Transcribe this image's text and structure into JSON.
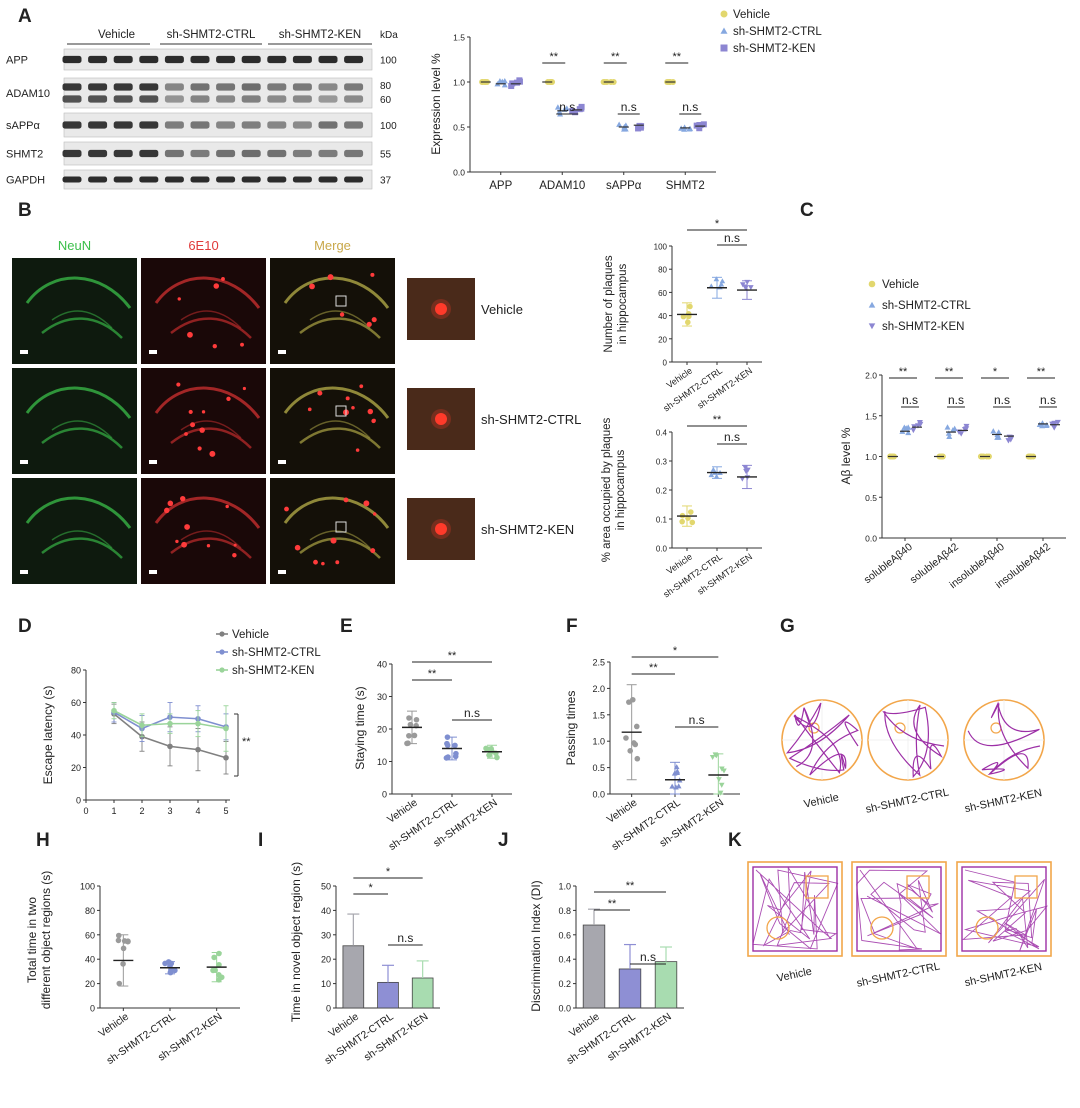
{
  "panel_letters": [
    "A",
    "B",
    "C",
    "D",
    "E",
    "F",
    "G",
    "H",
    "I",
    "J",
    "K"
  ],
  "colors": {
    "vehicle": "#e2d76e",
    "vehicle_gray": "#808080",
    "ctrl": "#7f8fd0",
    "ctrl_tri": "#86a8e0",
    "ken": "#8c86d2",
    "ken_green": "#9ad49a",
    "bar_vehicle": "#a7a7ae",
    "bar_ctrl": "#8e8fd4",
    "bar_ken": "#a8dcb0",
    "sig_dark": "#202020",
    "sig_red": "#d05050",
    "track": "#9c2fa6",
    "arena": "#f2a64a",
    "neun": "#3bbf4a",
    "e6e10": "#e03a3a",
    "merge": "#c9a84a"
  },
  "blot": {
    "groups": [
      "Vehicle",
      "sh-SHMT2-CTRL",
      "sh-SHMT2-KEN"
    ],
    "kda_label": "kDa",
    "rows": [
      {
        "name": "APP",
        "kda": [
          "100"
        ]
      },
      {
        "name": "ADAM10",
        "kda": [
          "80",
          "60"
        ]
      },
      {
        "name": "sAPPα",
        "kda": [
          "100"
        ]
      },
      {
        "name": "SHMT2",
        "kda": [
          "55"
        ]
      },
      {
        "name": "GAPDH",
        "kda": [
          "37"
        ]
      }
    ]
  },
  "ihc": {
    "headers": [
      "NeuN",
      "6E10",
      "Merge"
    ],
    "rows": [
      "Vehicle",
      "sh-SHMT2-CTRL",
      "sh-SHMT2-KEN"
    ]
  },
  "group_ticks": [
    "Vehicle",
    "sh-SHMT2-CTRL",
    "sh-SHMT2-KEN"
  ],
  "chart_data": [
    {
      "panel": "A",
      "type": "scatter",
      "ylabel": "Expression level %",
      "ylim": [
        0,
        1.5
      ],
      "yticks": [
        "0.0",
        "0.5",
        "1.0",
        "1.5"
      ],
      "categories": [
        "APP",
        "ADAM10",
        "sAPPα",
        "SHMT2"
      ],
      "legend": [
        "Vehicle",
        "sh-SHMT2-CTRL",
        "sh-SHMT2-KEN"
      ],
      "series": [
        {
          "name": "Vehicle",
          "values": [
            1.0,
            1.0,
            1.0,
            1.0
          ]
        },
        {
          "name": "sh-SHMT2-CTRL",
          "values": [
            0.98,
            0.68,
            0.5,
            0.49
          ]
        },
        {
          "name": "sh-SHMT2-KEN",
          "values": [
            0.98,
            0.69,
            0.52,
            0.51
          ]
        }
      ],
      "annotations": [
        {
          "pair": "Vehicle-CTRL",
          "category": "ADAM10",
          "label": "**"
        },
        {
          "pair": "CTRL-KEN",
          "category": "ADAM10",
          "label": "n.s"
        },
        {
          "pair": "Vehicle-CTRL",
          "category": "sAPPα",
          "label": "**"
        },
        {
          "pair": "CTRL-KEN",
          "category": "sAPPα",
          "label": "n.s"
        },
        {
          "pair": "Vehicle-CTRL",
          "category": "SHMT2",
          "label": "**"
        },
        {
          "pair": "CTRL-KEN",
          "category": "SHMT2",
          "label": "n.s"
        }
      ]
    },
    {
      "panel": "B-top",
      "type": "scatter",
      "ylabel": [
        "Number of plaques",
        "in hippocampus"
      ],
      "ylim": [
        0,
        100
      ],
      "yticks": [
        "0",
        "20",
        "40",
        "60",
        "80",
        "100"
      ],
      "categories": [
        "Vehicle",
        "sh-SHMT2-CTRL",
        "sh-SHMT2-KEN"
      ],
      "means": [
        41,
        64,
        62
      ],
      "sd": [
        10,
        9,
        8
      ],
      "annotations": [
        {
          "pair": "Vehicle-KEN",
          "label": "*"
        },
        {
          "pair": "CTRL-KEN",
          "label": "n.s"
        }
      ]
    },
    {
      "panel": "B-bottom",
      "type": "scatter",
      "ylabel": [
        "% area occupied by plaques",
        "in hippocampus"
      ],
      "ylim": [
        0,
        0.4
      ],
      "yticks": [
        "0.0",
        "0.1",
        "0.2",
        "0.3",
        "0.4"
      ],
      "categories": [
        "Vehicle",
        "sh-SHMT2-CTRL",
        "sh-SHMT2-KEN"
      ],
      "means": [
        0.11,
        0.26,
        0.245
      ],
      "sd": [
        0.035,
        0.02,
        0.04
      ],
      "annotations": [
        {
          "pair": "Vehicle-KEN",
          "label": "**"
        },
        {
          "pair": "CTRL-KEN",
          "label": "n.s"
        }
      ]
    },
    {
      "panel": "C",
      "type": "scatter",
      "ylabel": "Aβ level %",
      "ylim": [
        0,
        2.0
      ],
      "yticks": [
        "0.0",
        "0.5",
        "1.0",
        "1.5",
        "2.0"
      ],
      "categories": [
        "solubleAβ40",
        "solubleAβ42",
        "insolubleAβ40",
        "insolubleAβ42"
      ],
      "legend": [
        "Vehicle",
        "sh-SHMT2-CTRL",
        "sh-SHMT2-KEN"
      ],
      "series": [
        {
          "name": "Vehicle",
          "values": [
            1.0,
            1.0,
            1.0,
            1.0
          ]
        },
        {
          "name": "sh-SHMT2-CTRL",
          "values": [
            1.31,
            1.3,
            1.27,
            1.4
          ]
        },
        {
          "name": "sh-SHMT2-KEN",
          "values": [
            1.36,
            1.32,
            1.25,
            1.39
          ]
        }
      ],
      "annotations": [
        {
          "category": "solubleAβ40",
          "sig": "**",
          "ns": "n.s"
        },
        {
          "category": "solubleAβ42",
          "sig": "**",
          "ns": "n.s"
        },
        {
          "category": "insolubleAβ40",
          "sig": "*",
          "ns": "n.s"
        },
        {
          "category": "insolubleAβ42",
          "sig": "**",
          "ns": "n.s"
        }
      ]
    },
    {
      "panel": "D",
      "type": "line",
      "ylabel": "Escape latency (s)",
      "ylim": [
        0,
        80
      ],
      "xlim": [
        0,
        5
      ],
      "yticks": [
        "0",
        "20",
        "40",
        "60",
        "80"
      ],
      "xticks": [
        "0",
        "1",
        "2",
        "3",
        "4",
        "5"
      ],
      "x": [
        1,
        2,
        3,
        4,
        5
      ],
      "series": [
        {
          "name": "Vehicle",
          "values": [
            53,
            39,
            33,
            31,
            26
          ],
          "sd": [
            6,
            9,
            12,
            13,
            10
          ]
        },
        {
          "name": "sh-SHMT2-CTRL",
          "values": [
            54,
            44,
            51,
            50,
            45
          ],
          "sd": [
            6,
            8,
            9,
            8,
            8
          ]
        },
        {
          "name": "sh-SHMT2-KEN",
          "values": [
            55,
            46,
            47,
            47,
            44
          ],
          "sd": [
            5,
            7,
            6,
            8,
            14
          ]
        }
      ],
      "annotation": "**"
    },
    {
      "panel": "E",
      "type": "scatter",
      "ylabel": "Staying time (s)",
      "ylim": [
        0,
        40
      ],
      "yticks": [
        "0",
        "10",
        "20",
        "30",
        "40"
      ],
      "categories": [
        "Vehicle",
        "sh-SHMT2-CTRL",
        "sh-SHMT2-KEN"
      ],
      "means": [
        20.5,
        14,
        13
      ],
      "sd": [
        5,
        3.5,
        2
      ],
      "annotations": [
        {
          "pair": "Vehicle-KEN",
          "label": "**"
        },
        {
          "pair": "Vehicle-CTRL",
          "label": "**"
        },
        {
          "pair": "CTRL-KEN",
          "label": "n.s"
        }
      ]
    },
    {
      "panel": "F",
      "type": "scatter",
      "ylabel": "Passing times",
      "ylim": [
        0,
        2.5
      ],
      "yticks": [
        "0.0",
        "0.5",
        "1.0",
        "1.5",
        "2.0",
        "2.5"
      ],
      "categories": [
        "Vehicle",
        "sh-SHMT2-CTRL",
        "sh-SHMT2-KEN"
      ],
      "means": [
        1.17,
        0.27,
        0.36
      ],
      "sd": [
        0.9,
        0.33,
        0.4
      ],
      "annotations": [
        {
          "pair": "Vehicle-KEN",
          "label": "*"
        },
        {
          "pair": "Vehicle-CTRL",
          "label": "**"
        },
        {
          "pair": "CTRL-KEN",
          "label": "n.s"
        }
      ]
    },
    {
      "panel": "H",
      "type": "scatter",
      "ylabel": [
        "Total time in two",
        "different object regions (s)"
      ],
      "ylim": [
        0,
        100
      ],
      "yticks": [
        "0",
        "20",
        "40",
        "60",
        "80",
        "100"
      ],
      "categories": [
        "Vehicle",
        "sh-SHMT2-CTRL",
        "sh-SHMT2-KEN"
      ],
      "means": [
        39,
        33,
        33.5
      ],
      "sd": [
        21,
        5,
        12
      ]
    },
    {
      "panel": "I",
      "type": "bar",
      "ylabel": "Time in novel object region (s)",
      "ylim": [
        0,
        50
      ],
      "yticks": [
        "0",
        "10",
        "20",
        "30",
        "40",
        "50"
      ],
      "categories": [
        "Vehicle",
        "sh-SHMT2-CTRL",
        "sh-SHMT2-KEN"
      ],
      "values": [
        25.5,
        10.5,
        12.3
      ],
      "sd": [
        13,
        7,
        7
      ],
      "annotations": [
        {
          "pair": "Vehicle-KEN",
          "label": "*"
        },
        {
          "pair": "Vehicle-CTRL",
          "label": "*"
        },
        {
          "pair": "CTRL-KEN",
          "label": "n.s"
        }
      ]
    },
    {
      "panel": "J",
      "type": "bar",
      "ylabel": "Discrimination Index (DI)",
      "ylim": [
        0,
        1.0
      ],
      "yticks": [
        "0.0",
        "0.2",
        "0.4",
        "0.6",
        "0.8",
        "1.0"
      ],
      "categories": [
        "Vehicle",
        "sh-SHMT2-CTRL",
        "sh-SHMT2-KEN"
      ],
      "values": [
        0.68,
        0.32,
        0.38
      ],
      "sd": [
        0.13,
        0.2,
        0.12
      ],
      "annotations": [
        {
          "pair": "Vehicle-KEN",
          "label": "**"
        },
        {
          "pair": "Vehicle-CTRL",
          "label": "**"
        },
        {
          "pair": "CTRL-KEN",
          "label": "n.s"
        }
      ]
    }
  ],
  "tracks_G": [
    "Vehicle",
    "sh-SHMT2-CTRL",
    "sh-SHMT2-KEN"
  ],
  "tracks_K": [
    "Vehicle",
    "sh-SHMT2-CTRL",
    "sh-SHMT2-KEN"
  ]
}
